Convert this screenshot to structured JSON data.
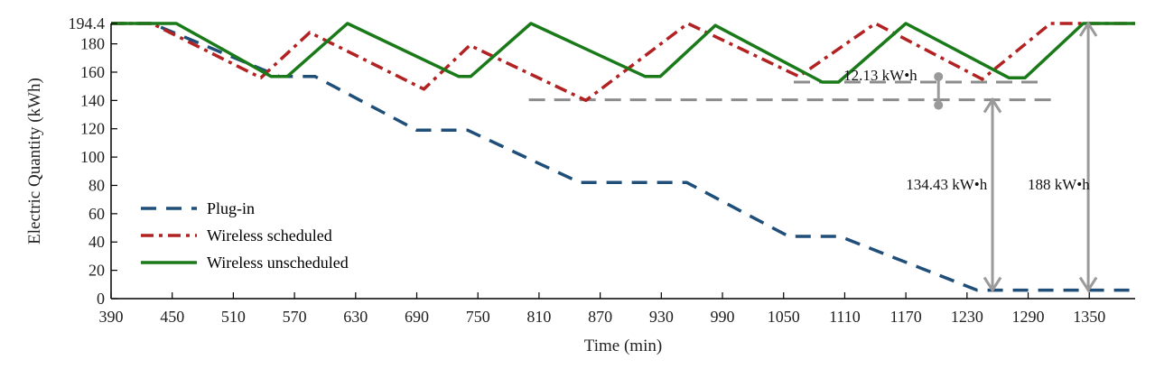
{
  "chart_data": {
    "type": "line",
    "xlabel": "Time (min)",
    "ylabel": "Electric Quantity (kWh)",
    "xlim": [
      390,
      1395
    ],
    "ylim": [
      0,
      194.4
    ],
    "x_ticks": [
      "390",
      "450",
      "510",
      "570",
      "630",
      "690",
      "750",
      "810",
      "870",
      "930",
      "990",
      "1050",
      "1110",
      "1170",
      "1230",
      "1290",
      "1350"
    ],
    "y_ticks": [
      "0",
      "20",
      "40",
      "60",
      "80",
      "100",
      "120",
      "140",
      "160",
      "180",
      "194.4"
    ],
    "legend_position": "bottom-left",
    "series": [
      {
        "name": "Plug-in",
        "color": "#1f4e79",
        "style": "dashed",
        "points": [
          [
            390,
            194.4
          ],
          [
            430,
            194.4
          ],
          [
            555,
            157
          ],
          [
            590,
            157
          ],
          [
            690,
            119
          ],
          [
            740,
            119
          ],
          [
            850,
            82
          ],
          [
            955,
            82
          ],
          [
            1055,
            44
          ],
          [
            1105,
            44
          ],
          [
            1240,
            6
          ],
          [
            1395,
            6
          ]
        ]
      },
      {
        "name": "Wireless scheduled",
        "color": "#b22222",
        "style": "dash-dot",
        "points": [
          [
            390,
            194.4
          ],
          [
            430,
            194.4
          ],
          [
            537,
            156
          ],
          [
            585,
            188
          ],
          [
            697,
            148
          ],
          [
            742,
            179
          ],
          [
            856,
            140
          ],
          [
            956,
            194.4
          ],
          [
            1065,
            157
          ],
          [
            1140,
            194.4
          ],
          [
            1245,
            155
          ],
          [
            1312,
            194.4
          ],
          [
            1395,
            194.4
          ]
        ]
      },
      {
        "name": "Wireless unscheduled",
        "color": "#1a7a1a",
        "style": "solid",
        "points": [
          [
            390,
            194.4
          ],
          [
            454,
            194.4
          ],
          [
            547,
            157
          ],
          [
            563,
            157
          ],
          [
            622,
            194.4
          ],
          [
            731,
            157
          ],
          [
            743,
            157
          ],
          [
            802,
            194.4
          ],
          [
            914,
            157
          ],
          [
            929,
            157
          ],
          [
            983,
            193
          ],
          [
            1088,
            153
          ],
          [
            1104,
            153
          ],
          [
            1170,
            194.4
          ],
          [
            1271,
            156
          ],
          [
            1287,
            156
          ],
          [
            1344,
            194.4
          ],
          [
            1395,
            194.4
          ]
        ]
      }
    ],
    "annotations": [
      {
        "text": "12.13 kW•h",
        "x": 1145,
        "y": 158
      },
      {
        "text": "134.43 kW•h",
        "x": 1210,
        "y": 81
      },
      {
        "text": "188 kW•h",
        "x": 1320,
        "y": 81
      }
    ],
    "reference_lines": [
      {
        "y": 153,
        "x": [
          1060,
          1300
        ]
      },
      {
        "y": 140.5,
        "x": [
          800,
          1320
        ]
      }
    ],
    "arrows": [
      {
        "x": 1255,
        "y": [
          6,
          140.5
        ]
      },
      {
        "x": 1349,
        "y": [
          6,
          194.4
        ]
      }
    ],
    "gap_marker": {
      "x": 1202,
      "y": [
        140.5,
        153
      ]
    }
  }
}
